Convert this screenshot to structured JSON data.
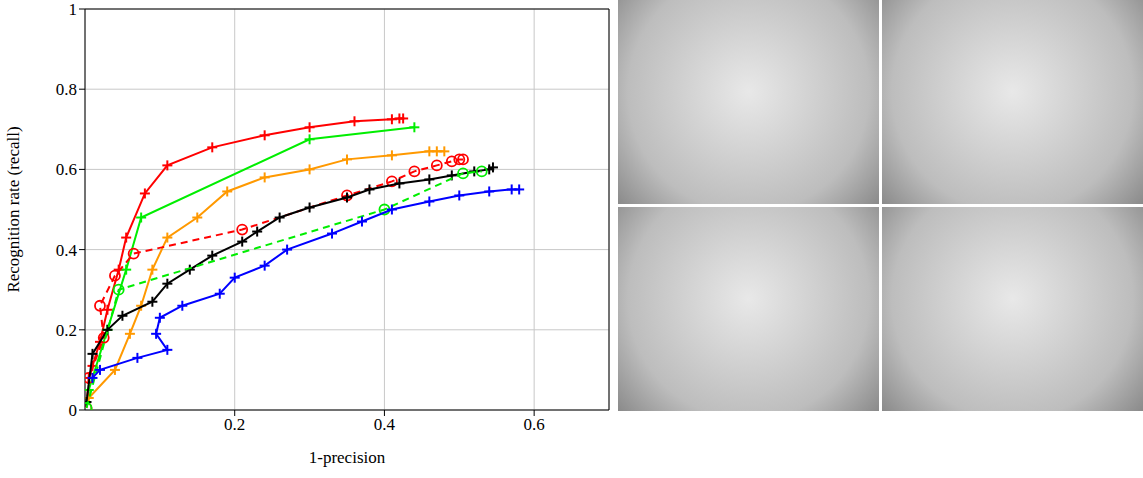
{
  "chart_data": {
    "type": "line",
    "x_label": "1-precision",
    "y_label": "Recognition rate (recall)",
    "xlim": [
      0,
      0.7
    ],
    "xticks": [
      0.2,
      0.4,
      0.6
    ],
    "ylim": [
      0,
      1
    ],
    "yticks": [
      0,
      0.2,
      0.4,
      0.6,
      0.8,
      1
    ],
    "grid": true,
    "series": [
      {
        "color": "#ff0000",
        "marker": "plus",
        "line_style": "solid",
        "x": [
          0.005,
          0.01,
          0.02,
          0.03,
          0.045,
          0.055,
          0.08,
          0.11,
          0.17,
          0.24,
          0.3,
          0.36,
          0.41,
          0.42,
          0.425
        ],
        "values": [
          0.08,
          0.11,
          0.17,
          0.25,
          0.35,
          0.43,
          0.54,
          0.61,
          0.655,
          0.685,
          0.705,
          0.72,
          0.725,
          0.727,
          0.727
        ]
      },
      {
        "color": "#00ee00",
        "marker": "plus",
        "line_style": "solid",
        "x": [
          0.005,
          0.03,
          0.055,
          0.075,
          0.3,
          0.44
        ],
        "values": [
          0.05,
          0.2,
          0.35,
          0.48,
          0.675,
          0.705
        ]
      },
      {
        "color": "#ff9900",
        "marker": "plus",
        "line_style": "solid",
        "x": [
          0.005,
          0.04,
          0.06,
          0.075,
          0.09,
          0.11,
          0.15,
          0.19,
          0.24,
          0.3,
          0.35,
          0.41,
          0.46,
          0.47,
          0.48
        ],
        "values": [
          0.03,
          0.1,
          0.19,
          0.26,
          0.35,
          0.43,
          0.48,
          0.545,
          0.58,
          0.6,
          0.625,
          0.635,
          0.645,
          0.645,
          0.645
        ]
      },
      {
        "color": "#ff0000",
        "marker": "circle",
        "line_style": "dashed",
        "x": [
          0.002,
          0.005,
          0.025,
          0.02,
          0.04,
          0.065,
          0.21,
          0.35,
          0.41,
          0.44,
          0.47,
          0.49,
          0.5,
          0.505
        ],
        "values": [
          0.005,
          0.08,
          0.18,
          0.26,
          0.335,
          0.39,
          0.45,
          0.535,
          0.57,
          0.595,
          0.61,
          0.62,
          0.625,
          0.625
        ]
      },
      {
        "color": "#000000",
        "marker": "plus",
        "line_style": "solid",
        "x": [
          0.002,
          0.01,
          0.03,
          0.05,
          0.09,
          0.11,
          0.14,
          0.17,
          0.21,
          0.23,
          0.26,
          0.3,
          0.35,
          0.38,
          0.42,
          0.46,
          0.49,
          0.52,
          0.54,
          0.545
        ],
        "values": [
          0.02,
          0.14,
          0.2,
          0.235,
          0.27,
          0.315,
          0.35,
          0.385,
          0.42,
          0.445,
          0.48,
          0.505,
          0.53,
          0.55,
          0.565,
          0.575,
          0.585,
          0.595,
          0.6,
          0.605
        ]
      },
      {
        "color": "#00ee00",
        "marker": "circle",
        "line_style": "dashed",
        "x": [
          0.002,
          0.045,
          0.4,
          0.505,
          0.53
        ],
        "values": [
          0.005,
          0.3,
          0.5,
          0.59,
          0.595
        ]
      },
      {
        "color": "#0000ff",
        "marker": "plus",
        "line_style": "solid",
        "x": [
          0.01,
          0.02,
          0.07,
          0.11,
          0.095,
          0.1,
          0.13,
          0.18,
          0.2,
          0.24,
          0.27,
          0.33,
          0.37,
          0.41,
          0.46,
          0.5,
          0.54,
          0.57,
          0.58
        ],
        "values": [
          0.08,
          0.1,
          0.13,
          0.15,
          0.19,
          0.23,
          0.26,
          0.29,
          0.33,
          0.36,
          0.4,
          0.44,
          0.47,
          0.5,
          0.52,
          0.535,
          0.545,
          0.55,
          0.55
        ]
      }
    ]
  }
}
